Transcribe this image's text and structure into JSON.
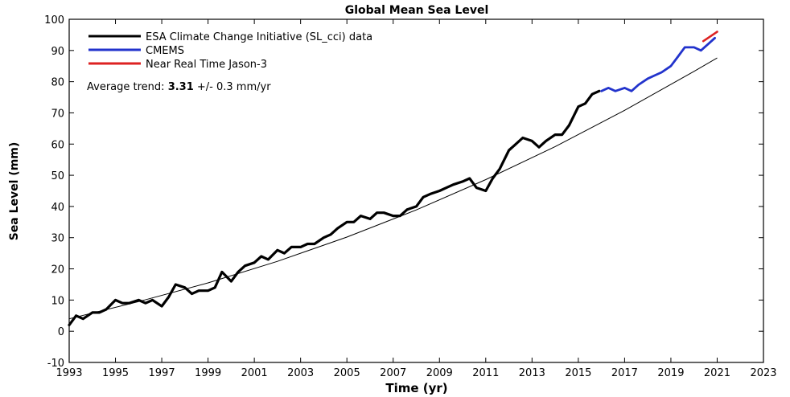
{
  "chart_data": {
    "type": "line",
    "title": "Global Mean Sea Level",
    "xlabel": "Time (yr)",
    "ylabel": "Sea Level (mm)",
    "xlim": [
      1993,
      2023
    ],
    "ylim": [
      -10,
      100
    ],
    "x_ticks": [
      1993,
      1995,
      1997,
      1999,
      2001,
      2003,
      2005,
      2007,
      2009,
      2011,
      2013,
      2015,
      2017,
      2019,
      2021,
      2023
    ],
    "y_ticks": [
      -10,
      0,
      10,
      20,
      30,
      40,
      50,
      60,
      70,
      80,
      90,
      100
    ],
    "legend_position": "top-left",
    "annotation": {
      "prefix": "Average trend: ",
      "value": "3.31",
      "suffix": " +/- 0.3 mm/yr"
    },
    "series": [
      {
        "name": "ESA Climate Change Initiative (SL_cci) data",
        "color": "#000000",
        "x": [
          1993.0,
          1993.3,
          1993.6,
          1994.0,
          1994.3,
          1994.6,
          1995.0,
          1995.3,
          1995.6,
          1996.0,
          1996.3,
          1996.6,
          1997.0,
          1997.3,
          1997.6,
          1998.0,
          1998.3,
          1998.6,
          1999.0,
          1999.3,
          1999.6,
          2000.0,
          2000.3,
          2000.6,
          2001.0,
          2001.3,
          2001.6,
          2002.0,
          2002.3,
          2002.6,
          2003.0,
          2003.3,
          2003.6,
          2004.0,
          2004.3,
          2004.6,
          2005.0,
          2005.3,
          2005.6,
          2006.0,
          2006.3,
          2006.6,
          2007.0,
          2007.3,
          2007.6,
          2008.0,
          2008.3,
          2008.6,
          2009.0,
          2009.3,
          2009.6,
          2010.0,
          2010.3,
          2010.6,
          2011.0,
          2011.3,
          2011.6,
          2012.0,
          2012.3,
          2012.6,
          2013.0,
          2013.3,
          2013.6,
          2014.0,
          2014.3,
          2014.6,
          2015.0,
          2015.3,
          2015.6,
          2015.9
        ],
        "values": [
          2,
          5,
          4,
          6,
          6,
          7,
          10,
          9,
          9,
          10,
          9,
          10,
          8,
          11,
          15,
          14,
          12,
          13,
          13,
          14,
          19,
          16,
          19,
          21,
          22,
          24,
          23,
          26,
          25,
          27,
          27,
          28,
          28,
          30,
          31,
          33,
          35,
          35,
          37,
          36,
          38,
          38,
          37,
          37,
          39,
          40,
          43,
          44,
          45,
          46,
          47,
          48,
          49,
          46,
          45,
          49,
          52,
          58,
          60,
          62,
          61,
          59,
          61,
          63,
          63,
          66,
          72,
          73,
          76,
          77
        ]
      },
      {
        "name": "CMEMS",
        "color": "#2233cc",
        "x": [
          2016.0,
          2016.3,
          2016.6,
          2017.0,
          2017.3,
          2017.6,
          2018.0,
          2018.3,
          2018.6,
          2019.0,
          2019.3,
          2019.6,
          2020.0,
          2020.3,
          2020.6,
          2020.9
        ],
        "values": [
          77,
          78,
          77,
          78,
          77,
          79,
          81,
          82,
          83,
          85,
          88,
          91,
          91,
          90,
          92,
          94
        ]
      },
      {
        "name": "Near Real Time Jason-3",
        "color": "#dd2222",
        "x": [
          2020.4,
          2020.6,
          2020.8,
          2021.0
        ],
        "values": [
          93,
          94,
          95,
          96
        ]
      }
    ],
    "trend_line": {
      "color": "#000000",
      "x": [
        1993,
        1996,
        1999,
        2002,
        2005,
        2008,
        2011,
        2014,
        2017,
        2020,
        2021
      ],
      "values": [
        4,
        9.5,
        15.5,
        22.4,
        30.2,
        38.9,
        48.6,
        59.2,
        70.8,
        83.3,
        87.6
      ]
    }
  }
}
